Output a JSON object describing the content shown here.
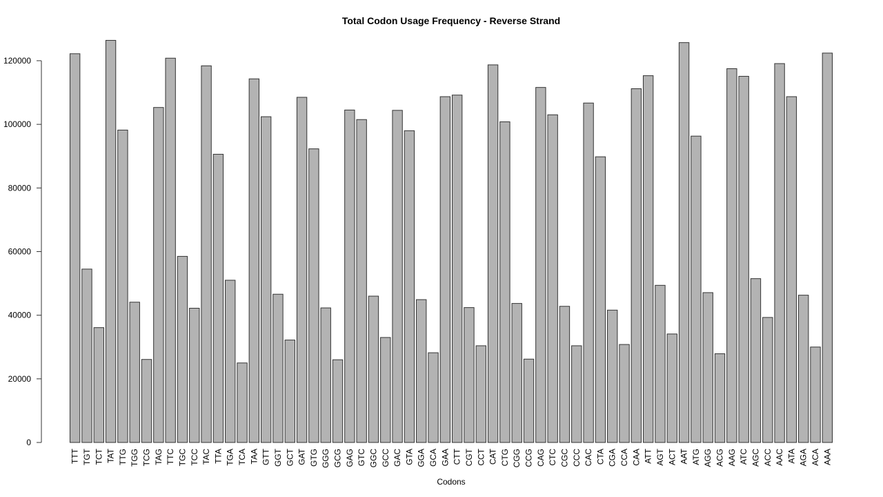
{
  "chart_data": {
    "type": "bar",
    "title": "Total Codon Usage Frequency - Reverse Strand",
    "xlabel": "Codons",
    "ylabel": "",
    "ylim": [
      0,
      126500
    ],
    "yticks": [
      0,
      20000,
      40000,
      60000,
      80000,
      100000,
      120000
    ],
    "grid": false,
    "bar_color": "#b3b3b3",
    "bar_outline": "#333333",
    "categories": [
      "TTT",
      "TGT",
      "TCT",
      "TAT",
      "TTG",
      "TGG",
      "TCG",
      "TAG",
      "TTC",
      "TGC",
      "TCC",
      "TAC",
      "TTA",
      "TGA",
      "TCA",
      "TAA",
      "GTT",
      "GGT",
      "GCT",
      "GAT",
      "GTG",
      "GGG",
      "GCG",
      "GAG",
      "GTC",
      "GGC",
      "GCC",
      "GAC",
      "GTA",
      "GGA",
      "GCA",
      "GAA",
      "CTT",
      "CGT",
      "CCT",
      "CAT",
      "CTG",
      "CGG",
      "CCG",
      "CAG",
      "CTC",
      "CGC",
      "CCC",
      "CAC",
      "CTA",
      "CGA",
      "CCA",
      "CAA",
      "ATT",
      "AGT",
      "ACT",
      "AAT",
      "ATG",
      "AGG",
      "ACG",
      "AAG",
      "ATC",
      "AGC",
      "ACC",
      "AAC",
      "ATA",
      "AGA",
      "ACA",
      "AAA"
    ],
    "values": [
      122200,
      54500,
      36100,
      126400,
      98200,
      44100,
      26100,
      105300,
      120800,
      58500,
      42200,
      118400,
      90600,
      51000,
      25000,
      114300,
      102400,
      46600,
      32200,
      108500,
      92300,
      42300,
      26000,
      104500,
      101500,
      46000,
      33000,
      104400,
      98000,
      44900,
      28200,
      108700,
      109200,
      42400,
      30400,
      118700,
      100800,
      43700,
      26200,
      111600,
      103000,
      42800,
      30400,
      106700,
      89800,
      41600,
      30800,
      111200,
      115300,
      49400,
      34100,
      125700,
      96300,
      47100,
      27900,
      117500,
      115100,
      51500,
      39300,
      119100,
      108700,
      46300,
      30000,
      122400
    ]
  }
}
